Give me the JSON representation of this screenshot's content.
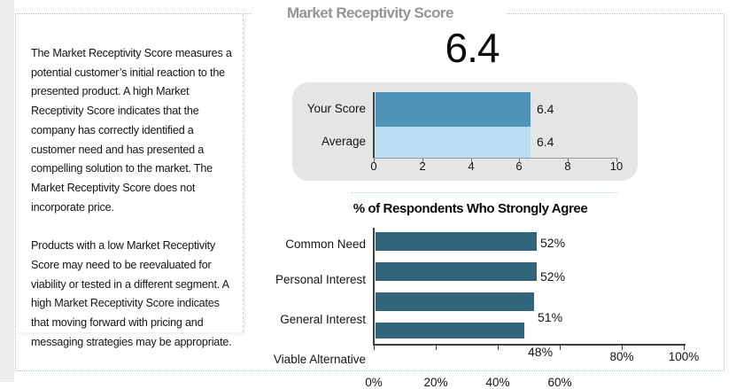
{
  "header": {
    "title": "Market Receptivity Score"
  },
  "description_panel": {
    "paragraph_1": "The Market Receptivity Score measures a potential customer’s initial reaction to the presented product. A high Market Receptivity Score indicates that the company has correctly identified a customer need and has presented a compelling solution to the market. The Market Receptivity Score does not incorporate price.",
    "paragraph_2": "Products with a low Market Receptivity Score may need to be reevaluated for viability or tested in a different segment. A high Market Receptivity Score indicates that moving forward with pricing and messaging strategies may be appropriate."
  },
  "score_display": {
    "value": "6.4"
  },
  "accent_colors": {
    "dotted_border": "#a6c3df",
    "panel_border": "#c3d9ec",
    "title_gray": "#959595",
    "score_panel_background": "#e5e5e7"
  },
  "chart_data": [
    {
      "type": "bar",
      "id": "score-comparison",
      "orientation": "horizontal",
      "title": "",
      "categories": [
        "Your Score",
        "Average"
      ],
      "values": [
        6.4,
        6.4
      ],
      "value_labels": [
        "6.4",
        "6.4"
      ],
      "bar_colors": [
        "#4e94b8",
        "#b9ddf2"
      ],
      "xlim": [
        0,
        10
      ],
      "x_tick_labels": [
        "0",
        "2",
        "4",
        "6",
        "8",
        "10"
      ],
      "background": "#e5e5e7",
      "grid": false,
      "legend": "none"
    },
    {
      "type": "bar",
      "id": "strongly-agree",
      "orientation": "horizontal",
      "title": "% of Respondents Who Strongly Agree",
      "categories": [
        "Common Need",
        "Personal Interest",
        "General Interest",
        "Viable Alternative"
      ],
      "values": [
        52,
        52,
        51,
        48
      ],
      "value_labels": [
        "52%",
        "52%",
        "51%",
        "48%"
      ],
      "bar_colors": [
        "#30657b",
        "#30657b",
        "#30657b",
        "#30657b"
      ],
      "xlim": [
        0,
        100
      ],
      "x_tick_labels": [
        "0%",
        "20%",
        "40%",
        "60%",
        "80%",
        "100%"
      ],
      "background": "#ffffff",
      "grid": false,
      "legend": "none"
    }
  ]
}
